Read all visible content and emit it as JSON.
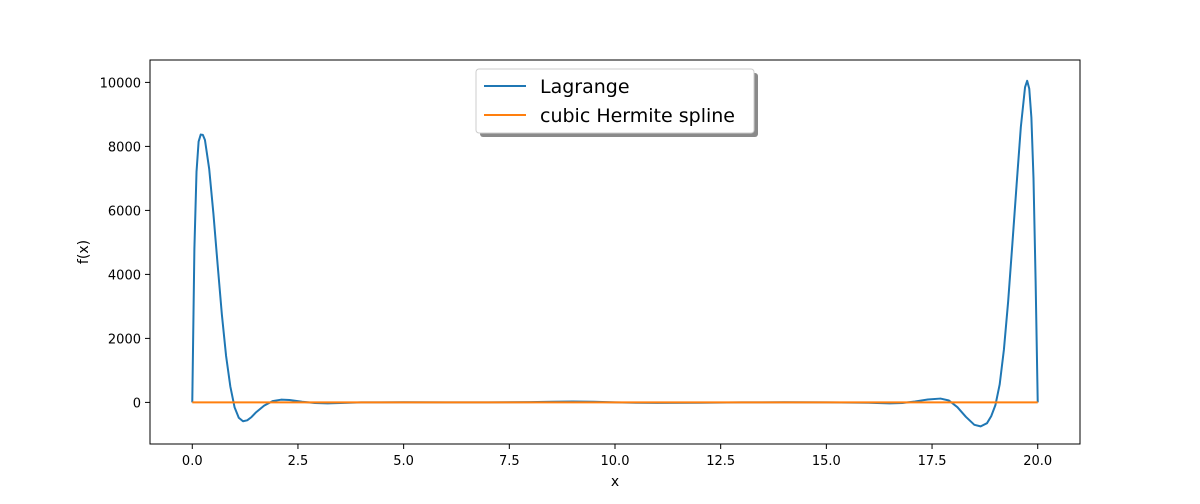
{
  "chart_data": {
    "type": "line",
    "title": "",
    "xlabel": "x",
    "ylabel": "f(x)",
    "xlim": [
      -1.0,
      21.0
    ],
    "ylim": [
      -1300,
      10700
    ],
    "xticks": [
      0.0,
      2.5,
      5.0,
      7.5,
      10.0,
      12.5,
      15.0,
      17.5,
      20.0
    ],
    "xtick_labels": [
      "0.0",
      "2.5",
      "5.0",
      "7.5",
      "10.0",
      "12.5",
      "15.0",
      "17.5",
      "20.0"
    ],
    "yticks": [
      0,
      2000,
      4000,
      6000,
      8000,
      10000
    ],
    "ytick_labels": [
      "0",
      "2000",
      "4000",
      "6000",
      "8000",
      "10000"
    ],
    "grid": false,
    "legend_position": "top-center",
    "series": [
      {
        "name": "Lagrange",
        "color": "#1f77b4",
        "x": [
          0,
          0.05,
          0.1,
          0.15,
          0.2,
          0.25,
          0.3,
          0.4,
          0.5,
          0.6,
          0.7,
          0.8,
          0.9,
          1.0,
          1.1,
          1.2,
          1.3,
          1.4,
          1.5,
          1.7,
          1.9,
          2.1,
          2.3,
          2.6,
          2.9,
          3.2,
          3.6,
          4.0,
          5.0,
          6.0,
          7.0,
          8.0,
          8.5,
          9.0,
          9.5,
          10.0,
          10.5,
          11.0,
          12.0,
          13.0,
          14.0,
          15.0,
          16.0,
          16.5,
          16.8,
          17.1,
          17.4,
          17.7,
          17.9,
          18.1,
          18.3,
          18.5,
          18.65,
          18.8,
          18.9,
          19.0,
          19.1,
          19.2,
          19.3,
          19.4,
          19.5,
          19.6,
          19.7,
          19.75,
          19.8,
          19.85,
          19.9,
          19.95,
          20.0
        ],
        "values": [
          0,
          4800,
          7200,
          8150,
          8370,
          8360,
          8200,
          7300,
          5900,
          4300,
          2750,
          1450,
          500,
          -150,
          -480,
          -590,
          -560,
          -460,
          -320,
          -100,
          40,
          85,
          75,
          20,
          -20,
          -30,
          -15,
          0,
          5,
          0,
          0,
          10,
          20,
          30,
          20,
          0,
          -10,
          -15,
          -10,
          0,
          5,
          0,
          -10,
          -30,
          -20,
          30,
          90,
          120,
          60,
          -150,
          -450,
          -700,
          -750,
          -650,
          -430,
          -80,
          560,
          1650,
          3150,
          4950,
          6800,
          8600,
          9850,
          10050,
          9800,
          8900,
          7000,
          3800,
          0
        ]
      },
      {
        "name": "cubic Hermite spline",
        "color": "#ff7f0e",
        "x": [
          0,
          20
        ],
        "values": [
          0,
          0
        ]
      }
    ]
  }
}
